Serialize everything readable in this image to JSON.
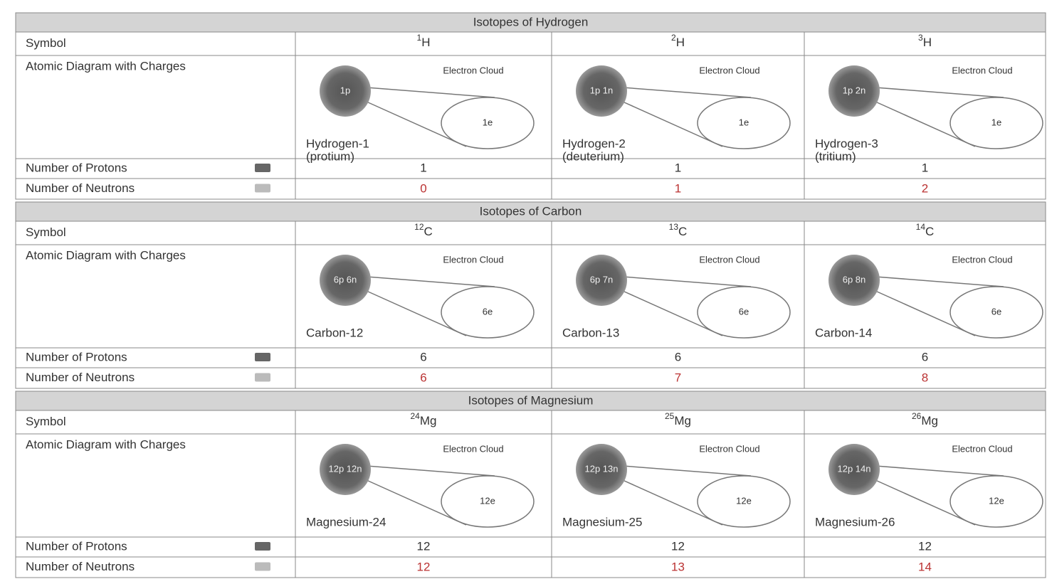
{
  "row_labels": [
    "Symbol",
    "Atomic Diagram with Charges",
    "Number of Protons",
    "Number of Neutrons"
  ],
  "cloud_label": "Electron Cloud",
  "sections": [
    {
      "title": "Isotopes of Hydrogen",
      "isotopes": [
        {
          "mass": "1",
          "element": "H",
          "nucleus": "1p",
          "electrons": "1e",
          "name": "Hydrogen-1",
          "note": "(protium)",
          "protons": 1,
          "neutrons": 0
        },
        {
          "mass": "2",
          "element": "H",
          "nucleus": "1p 1n",
          "electrons": "1e",
          "name": "Hydrogen-2",
          "note": "(deuterium)",
          "protons": 1,
          "neutrons": 1
        },
        {
          "mass": "3",
          "element": "H",
          "nucleus": "1p 2n",
          "electrons": "1e",
          "name": "Hydrogen-3",
          "note": "(tritium)",
          "protons": 1,
          "neutrons": 2
        }
      ]
    },
    {
      "title": "Isotopes of Carbon",
      "isotopes": [
        {
          "mass": "12",
          "element": "C",
          "nucleus": "6p 6n",
          "electrons": "6e",
          "name": "Carbon-12",
          "protons": 6,
          "neutrons": 6
        },
        {
          "mass": "13",
          "element": "C",
          "nucleus": "6p 7n",
          "electrons": "6e",
          "name": "Carbon-13",
          "protons": 6,
          "neutrons": 7
        },
        {
          "mass": "14",
          "element": "C",
          "nucleus": "6p 8n",
          "electrons": "6e",
          "name": "Carbon-14",
          "protons": 6,
          "neutrons": 8
        }
      ]
    },
    {
      "title": "Isotopes of Magnesium",
      "isotopes": [
        {
          "mass": "24",
          "element": "Mg",
          "nucleus": "12p 12n",
          "electrons": "12e",
          "name": "Magnesium-24",
          "protons": 12,
          "neutrons": 12
        },
        {
          "mass": "25",
          "element": "Mg",
          "nucleus": "12p 13n",
          "electrons": "12e",
          "name": "Magnesium-25",
          "protons": 12,
          "neutrons": 13
        },
        {
          "mass": "26",
          "element": "Mg",
          "nucleus": "12p 14n",
          "electrons": "12e",
          "name": "Magnesium-26",
          "protons": 12,
          "neutrons": 14
        }
      ]
    }
  ]
}
